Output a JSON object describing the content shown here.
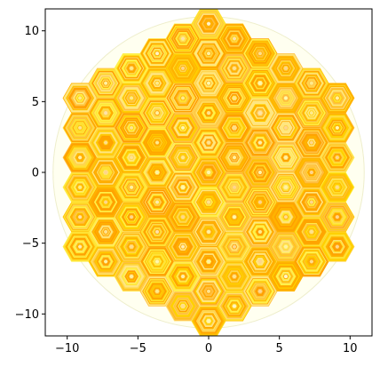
{
  "chart_data": {
    "type": "scatter",
    "title": "",
    "xlabel": "",
    "ylabel": "",
    "xlim": [
      -11.55,
      11.55
    ],
    "ylim": [
      -11.55,
      11.55
    ],
    "aspect": "equal",
    "grid": false,
    "legend": "none",
    "x_ticks": [
      -10,
      -5,
      0,
      5,
      10
    ],
    "x_tick_labels": [
      "−10",
      "−5",
      "0",
      "5",
      "10"
    ],
    "y_ticks": [
      -10,
      -5,
      0,
      5,
      10
    ],
    "y_tick_labels": [
      "−10",
      "−5",
      "0",
      "5",
      "10"
    ],
    "boundary_circle": {
      "center": [
        0,
        0
      ],
      "radius": 11.0
    },
    "hex_grid": {
      "shape": "hexagonal assembly of concentric hexagon rings",
      "pitch": 2.1,
      "rings": 6,
      "max_radius": 10.6,
      "marker": "hexagon",
      "hex_radius": 1.2
    },
    "colors": {
      "boundary_fill": "#fffff0",
      "boundary_stroke": "#eeeecc",
      "palette": [
        "#ffa500",
        "#ffb300",
        "#ffc107",
        "#ffd000",
        "#ffe033",
        "#fff04a",
        "#ffd54f",
        "#ffe680",
        "#ff9f00",
        "#ffbf40"
      ],
      "axis": "#000000"
    }
  }
}
